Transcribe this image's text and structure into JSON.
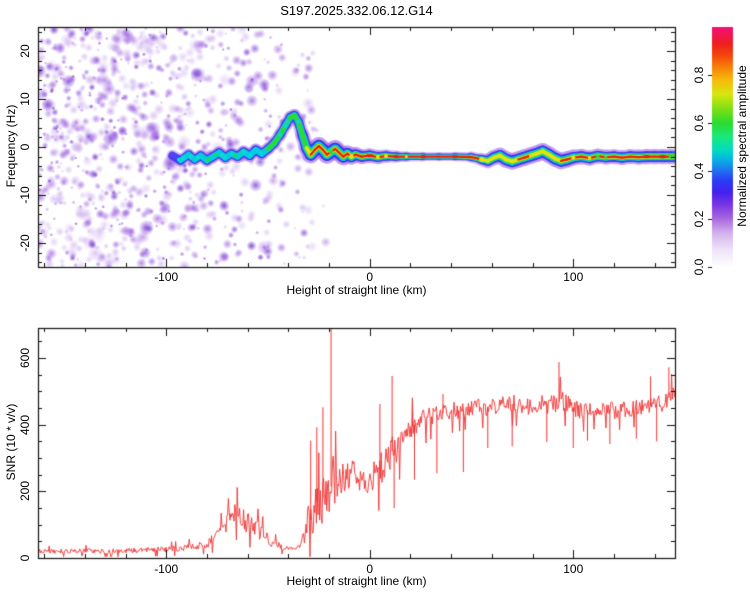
{
  "title": "S197.2025.332.06.12.G14",
  "colors": {
    "axis": "#111111",
    "signal_red": "#ee3333",
    "noise_purple": "#8a3ad8",
    "background": "#ffffff"
  },
  "chart_data": [
    {
      "type": "heatmap",
      "title": "S197.2025.332.06.12.G14",
      "xlabel": "Height of straight line (km)",
      "ylabel": "Frequency (Hz)",
      "xlim": [
        -163,
        150
      ],
      "ylim": [
        -25,
        25
      ],
      "xticks": [
        -100,
        0,
        100
      ],
      "xtick_labels": [
        "-100",
        "0",
        "100"
      ],
      "yticks": [
        -20,
        -10,
        0,
        10,
        20
      ],
      "ytick_labels": [
        "-20",
        "-10",
        "0",
        "10",
        "20"
      ],
      "x_minor_step": 20,
      "y_minor_step": 2,
      "grid": false,
      "colorbar": {
        "label": "Normalized spectral amplitude",
        "range": [
          0,
          1
        ],
        "tick_values": [
          0,
          0.2,
          0.4,
          0.6,
          0.8
        ],
        "tick_labels": [
          "0.0",
          "0.2",
          "0.4",
          "0.6",
          "0.8"
        ],
        "stops": [
          [
            0,
            "#ffffff"
          ],
          [
            0.07,
            "#efe4f8"
          ],
          [
            0.14,
            "#d4b4ec"
          ],
          [
            0.2,
            "#a96ae0"
          ],
          [
            0.26,
            "#7a34e4"
          ],
          [
            0.31,
            "#4323ee"
          ],
          [
            0.36,
            "#2b3cf2"
          ],
          [
            0.41,
            "#1e7ef0"
          ],
          [
            0.45,
            "#06b6e0"
          ],
          [
            0.49,
            "#02ddbc"
          ],
          [
            0.54,
            "#1ae87e"
          ],
          [
            0.6,
            "#2bdc30"
          ],
          [
            0.66,
            "#7fe014"
          ],
          [
            0.72,
            "#d8e60e"
          ],
          [
            0.78,
            "#f6bb0a"
          ],
          [
            0.83,
            "#f8830a"
          ],
          [
            0.88,
            "#f4480c"
          ],
          [
            0.93,
            "#ef1f1f"
          ],
          [
            1,
            "#f2107c"
          ]
        ]
      },
      "noise_regions": [
        [
          -163,
          -120,
          1.0
        ],
        [
          -120,
          -96,
          0.85
        ],
        [
          -96,
          -76,
          0.72
        ],
        [
          -76,
          -62,
          0.5
        ],
        [
          -62,
          -52,
          0.28
        ],
        [
          -52,
          -43,
          0.5
        ],
        [
          -43,
          -36,
          0.14
        ],
        [
          -36,
          -28,
          0.38
        ],
        [
          -28,
          -20,
          0.07
        ]
      ],
      "track": [
        [
          -97,
          -1.8,
          0.4,
          0.5
        ],
        [
          -93,
          -2.8,
          0.45,
          0.55
        ],
        [
          -89,
          -1.6,
          0.5,
          0.55
        ],
        [
          -86,
          -2.6,
          0.5,
          0.55
        ],
        [
          -83,
          -1.8,
          0.55,
          0.55
        ],
        [
          -80,
          -2.8,
          0.5,
          0.6
        ],
        [
          -77,
          -2,
          0.55,
          0.6
        ],
        [
          -74,
          -1.2,
          0.5,
          0.6
        ],
        [
          -71,
          -2.2,
          0.55,
          0.6
        ],
        [
          -68,
          -1.4,
          0.6,
          0.6
        ],
        [
          -65,
          -2,
          0.55,
          0.6
        ],
        [
          -62,
          -1,
          0.5,
          0.6
        ],
        [
          -59,
          -1.8,
          0.55,
          0.6
        ],
        [
          -56,
          -0.6,
          0.6,
          0.6
        ],
        [
          -53,
          -1.4,
          0.55,
          0.6
        ],
        [
          -50,
          -0.4,
          0.6,
          0.6
        ],
        [
          -47,
          0.8,
          0.6,
          0.6
        ],
        [
          -44,
          2.6,
          0.6,
          0.6
        ],
        [
          -41,
          4.8,
          0.6,
          0.6
        ],
        [
          -39,
          6.2,
          0.62,
          0.6
        ],
        [
          -37,
          6.6,
          0.6,
          0.6
        ],
        [
          -35,
          5.2,
          0.6,
          0.6
        ],
        [
          -33,
          2.4,
          0.65,
          0.7
        ],
        [
          -31,
          -0.2,
          0.75,
          0.85
        ],
        [
          -29,
          -1.6,
          0.85,
          0.95
        ],
        [
          -27,
          -0.6,
          0.9,
          1
        ],
        [
          -25,
          0.2,
          0.92,
          1
        ],
        [
          -23,
          -0.6,
          0.88,
          1
        ],
        [
          -21,
          -1.6,
          0.9,
          1
        ],
        [
          -19,
          -1,
          0.92,
          1
        ],
        [
          -17,
          -0.4,
          0.9,
          1
        ],
        [
          -15,
          -1.2,
          0.95,
          1
        ],
        [
          -13,
          -2,
          0.9,
          0.95
        ],
        [
          -11,
          -1.4,
          0.95,
          0.9
        ],
        [
          -9,
          -2,
          0.9,
          0.85
        ],
        [
          -7,
          -1.6,
          0.92,
          0.8
        ],
        [
          -4,
          -2,
          0.95,
          0.75
        ],
        [
          0,
          -1.8,
          0.92,
          0.75
        ],
        [
          4,
          -2.1,
          0.96,
          0.7
        ],
        [
          8,
          -1.9,
          1,
          0.65
        ],
        [
          13,
          -2,
          1,
          0.5
        ],
        [
          18,
          -2,
          1,
          0.4
        ],
        [
          26,
          -2,
          1,
          0.3
        ],
        [
          34,
          -2,
          1,
          0.28
        ],
        [
          42,
          -2,
          1,
          0.3
        ],
        [
          50,
          -2.1,
          0.95,
          0.4
        ],
        [
          55,
          -2.6,
          0.85,
          0.6
        ],
        [
          58,
          -2.9,
          0.8,
          0.7
        ],
        [
          61,
          -2.2,
          0.85,
          0.8
        ],
        [
          64,
          -1.8,
          0.8,
          0.85
        ],
        [
          67,
          -2.6,
          0.85,
          0.9
        ],
        [
          70,
          -3,
          0.78,
          0.9
        ],
        [
          73,
          -2.6,
          0.85,
          0.9
        ],
        [
          76,
          -2.2,
          0.9,
          0.9
        ],
        [
          79,
          -1.8,
          0.85,
          0.9
        ],
        [
          82,
          -1.4,
          0.8,
          0.9
        ],
        [
          85,
          -0.9,
          0.78,
          0.9
        ],
        [
          88,
          -1.6,
          0.85,
          0.9
        ],
        [
          91,
          -2.4,
          0.8,
          0.9
        ],
        [
          94,
          -2.9,
          0.85,
          0.9
        ],
        [
          97,
          -2.6,
          0.9,
          0.9
        ],
        [
          100,
          -2.2,
          0.88,
          0.85
        ],
        [
          104,
          -2,
          0.9,
          0.8
        ],
        [
          108,
          -2.3,
          0.92,
          0.8
        ],
        [
          112,
          -1.9,
          0.9,
          0.8
        ],
        [
          116,
          -2.1,
          0.92,
          0.75
        ],
        [
          120,
          -2,
          0.95,
          0.75
        ],
        [
          124,
          -2.2,
          0.92,
          0.75
        ],
        [
          128,
          -2,
          0.9,
          0.75
        ],
        [
          132,
          -2.1,
          0.95,
          0.8
        ],
        [
          136,
          -2,
          0.96,
          0.8
        ],
        [
          140,
          -2,
          0.95,
          0.8
        ],
        [
          144,
          -2,
          0.96,
          0.8
        ],
        [
          148,
          -2,
          0.95,
          0.8
        ],
        [
          150,
          -2,
          0.95,
          0.8
        ]
      ]
    },
    {
      "type": "line",
      "xlabel": "Height of straight line (km)",
      "ylabel": "SNR (10 * v/v)",
      "xlim": [
        -163,
        150
      ],
      "ylim": [
        0,
        690
      ],
      "xticks": [
        -100,
        0,
        100
      ],
      "xtick_labels": [
        "-100",
        "0",
        "100"
      ],
      "yticks": [
        0,
        200,
        400,
        600
      ],
      "ytick_labels": [
        "0",
        "200",
        "400",
        "600"
      ],
      "x_minor_step": 20,
      "y_minor_step": 50,
      "grid": false,
      "series": [
        {
          "name": "SNR",
          "color": "#ee3333",
          "anchors": [
            [
              -163,
              20,
              12
            ],
            [
              -150,
              20,
              12
            ],
            [
              -140,
              22,
              12
            ],
            [
              -130,
              20,
              12
            ],
            [
              -120,
              22,
              14
            ],
            [
              -110,
              24,
              14
            ],
            [
              -100,
              26,
              16
            ],
            [
              -95,
              28,
              16
            ],
            [
              -90,
              30,
              18
            ],
            [
              -85,
              35,
              20
            ],
            [
              -80,
              45,
              25
            ],
            [
              -75,
              65,
              35
            ],
            [
              -72,
              85,
              45
            ],
            [
              -69,
              110,
              55
            ],
            [
              -66,
              135,
              60
            ],
            [
              -63,
              120,
              60
            ],
            [
              -60,
              105,
              55
            ],
            [
              -57,
              95,
              50
            ],
            [
              -54,
              80,
              45
            ],
            [
              -51,
              60,
              35
            ],
            [
              -48,
              45,
              25
            ],
            [
              -45,
              38,
              20
            ],
            [
              -42,
              32,
              15
            ],
            [
              -39,
              30,
              12
            ],
            [
              -36,
              28,
              10
            ],
            [
              -34,
              35,
              15
            ],
            [
              -32,
              70,
              50
            ],
            [
              -30,
              120,
              90
            ],
            [
              -28,
              110,
              80
            ],
            [
              -26,
              170,
              120
            ],
            [
              -24,
              150,
              110
            ],
            [
              -22,
              210,
              140
            ],
            [
              -20,
              190,
              130
            ],
            [
              -18,
              240,
              130
            ],
            [
              -16,
              210,
              110
            ],
            [
              -14,
              240,
              110
            ],
            [
              -12,
              255,
              100
            ],
            [
              -10,
              235,
              95
            ],
            [
              -8,
              245,
              90
            ],
            [
              -6,
              225,
              85
            ],
            [
              -4,
              220,
              80
            ],
            [
              -2,
              230,
              75
            ],
            [
              0,
              240,
              80
            ],
            [
              2,
              250,
              85
            ],
            [
              4,
              255,
              90
            ],
            [
              6,
              275,
              90
            ],
            [
              8,
              295,
              95
            ],
            [
              10,
              315,
              110
            ],
            [
              12,
              325,
              90
            ],
            [
              14,
              335,
              85
            ],
            [
              16,
              355,
              75
            ],
            [
              18,
              375,
              70
            ],
            [
              20,
              390,
              65
            ],
            [
              23,
              405,
              60
            ],
            [
              26,
              415,
              60
            ],
            [
              30,
              428,
              55
            ],
            [
              35,
              432,
              52
            ],
            [
              40,
              440,
              50
            ],
            [
              45,
              444,
              48
            ],
            [
              50,
              450,
              46
            ],
            [
              55,
              452,
              48
            ],
            [
              60,
              456,
              50
            ],
            [
              65,
              460,
              48
            ],
            [
              70,
              462,
              50
            ],
            [
              75,
              458,
              48
            ],
            [
              80,
              452,
              50
            ],
            [
              85,
              460,
              52
            ],
            [
              90,
              466,
              55
            ],
            [
              95,
              470,
              55
            ],
            [
              100,
              452,
              50
            ],
            [
              105,
              442,
              48
            ],
            [
              110,
              446,
              46
            ],
            [
              115,
              450,
              44
            ],
            [
              120,
              442,
              48
            ],
            [
              125,
              446,
              44
            ],
            [
              130,
              450,
              44
            ],
            [
              135,
              454,
              44
            ],
            [
              140,
              458,
              46
            ],
            [
              145,
              468,
              48
            ],
            [
              150,
              500,
              45
            ]
          ],
          "spikes": [
            [
              -29,
              352
            ],
            [
              -26,
              392
            ],
            [
              -23,
              452
            ],
            [
              -19,
              688
            ],
            [
              5,
              462
            ],
            [
              11,
              546
            ],
            [
              21,
              470
            ],
            [
              36,
              492
            ],
            [
              93,
              588
            ],
            [
              138,
              545
            ],
            [
              147,
              572
            ]
          ],
          "down_spikes": [
            [
              12,
              150
            ],
            [
              22,
              235
            ],
            [
              33,
              255
            ],
            [
              46,
              258
            ],
            [
              58,
              330
            ],
            [
              70,
              335
            ],
            [
              87,
              348
            ],
            [
              100,
              330
            ],
            [
              107,
              352
            ],
            [
              118,
              342
            ],
            [
              131,
              358
            ],
            [
              141,
              350
            ]
          ]
        }
      ]
    }
  ]
}
